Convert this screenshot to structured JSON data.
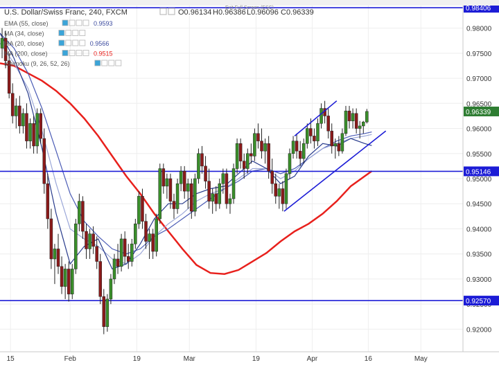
{
  "window": {
    "exit_label": "Exit Full Screen (ESC)"
  },
  "legend": {
    "symbol_title": "U.S. Dollar/Swiss Franc, 240, FXCM",
    "ohlc": {
      "open": "O0.96134",
      "high": "H0.96386",
      "low": "L0.96096",
      "close": "C0.96339"
    },
    "indicators": [
      {
        "label": "EMA (55, close)",
        "value": "0.9593",
        "color": "#3b4a9e"
      },
      {
        "label": "MA (34, close)",
        "value": "",
        "color": "#9aa6d8"
      },
      {
        "label": "MA (20, close)",
        "value": "0.9566",
        "color": "#3b4a9e"
      },
      {
        "label": "MA (200, close)",
        "value": "0.9515",
        "color": "#e8201c"
      },
      {
        "label": "Ichimoku (9, 26, 52, 26)",
        "value": "",
        "color": "#9aa6d8"
      }
    ]
  },
  "colors": {
    "up_candle": "#3a8f2a",
    "down_candle": "#8b1a1a",
    "ma200": "#e8201c",
    "ma_blue": "#4a5bb5",
    "ma_navy": "#283b8c",
    "hline": "#1c1cd6",
    "trend_line": "#1c1cd6",
    "current_price_bg": "#2e7d32",
    "grid": "#eeeeee",
    "axis_text": "#333333"
  },
  "chart_data": {
    "type": "line",
    "title": "U.S. Dollar/Swiss Franc, 240, FXCM",
    "ylim": [
      0.9155,
      0.9845
    ],
    "y_ticks": [
      0.92,
      0.925,
      0.93,
      0.935,
      0.94,
      0.945,
      0.95,
      0.955,
      0.96,
      0.965,
      0.97,
      0.975,
      0.98
    ],
    "y_tick_labels": [
      "0.92000",
      "0.92500",
      "0.93000",
      "0.93500",
      "0.94000",
      "0.94500",
      "0.95000",
      "0.95500",
      "0.96000",
      "0.96500",
      "0.97000",
      "0.97500",
      "0.98000"
    ],
    "x_tick_labels": [
      "15",
      "Feb",
      "19",
      "Mar",
      "19",
      "Apr",
      "16",
      "May"
    ],
    "x_ticks": [
      1.5,
      10,
      19.5,
      27,
      36.5,
      44.5,
      52.5,
      60
    ],
    "xlim": [
      0,
      66
    ],
    "grid": true,
    "legend_position": "top-left",
    "horizontal_levels": [
      {
        "value": 0.98406,
        "label": "0.98406"
      },
      {
        "value": 0.95146,
        "label": "0.95146"
      },
      {
        "value": 0.9257,
        "label": "0.92570"
      }
    ],
    "current_price": {
      "value": 0.96339,
      "label": "0.96339"
    },
    "trend_lines": [
      {
        "from": [
          42,
          0.9585
        ],
        "to": [
          48,
          0.9655
        ]
      },
      {
        "from": [
          40.5,
          0.9435
        ],
        "to": [
          55,
          0.9595
        ]
      }
    ],
    "candles": [
      {
        "x": 0.3,
        "o": 0.976,
        "h": 0.98,
        "l": 0.974,
        "c": 0.978
      },
      {
        "x": 0.8,
        "o": 0.978,
        "h": 0.9795,
        "l": 0.972,
        "c": 0.9735
      },
      {
        "x": 1.3,
        "o": 0.9735,
        "h": 0.975,
        "l": 0.966,
        "c": 0.967
      },
      {
        "x": 1.8,
        "o": 0.967,
        "h": 0.969,
        "l": 0.961,
        "c": 0.9625
      },
      {
        "x": 2.3,
        "o": 0.9625,
        "h": 0.966,
        "l": 0.96,
        "c": 0.9645
      },
      {
        "x": 2.8,
        "o": 0.9645,
        "h": 0.9665,
        "l": 0.959,
        "c": 0.9605
      },
      {
        "x": 3.3,
        "o": 0.9605,
        "h": 0.964,
        "l": 0.959,
        "c": 0.963
      },
      {
        "x": 3.8,
        "o": 0.963,
        "h": 0.965,
        "l": 0.956,
        "c": 0.9575
      },
      {
        "x": 4.3,
        "o": 0.9575,
        "h": 0.962,
        "l": 0.956,
        "c": 0.961
      },
      {
        "x": 4.8,
        "o": 0.961,
        "h": 0.9625,
        "l": 0.955,
        "c": 0.9565
      },
      {
        "x": 5.3,
        "o": 0.9565,
        "h": 0.964,
        "l": 0.955,
        "c": 0.963
      },
      {
        "x": 5.8,
        "o": 0.963,
        "h": 0.964,
        "l": 0.957,
        "c": 0.958
      },
      {
        "x": 6.3,
        "o": 0.958,
        "h": 0.96,
        "l": 0.947,
        "c": 0.949
      },
      {
        "x": 6.8,
        "o": 0.949,
        "h": 0.951,
        "l": 0.94,
        "c": 0.942
      },
      {
        "x": 7.3,
        "o": 0.942,
        "h": 0.944,
        "l": 0.932,
        "c": 0.934
      },
      {
        "x": 7.8,
        "o": 0.934,
        "h": 0.937,
        "l": 0.929,
        "c": 0.936
      },
      {
        "x": 8.3,
        "o": 0.936,
        "h": 0.939,
        "l": 0.931,
        "c": 0.9325
      },
      {
        "x": 8.8,
        "o": 0.9325,
        "h": 0.9345,
        "l": 0.927,
        "c": 0.9285
      },
      {
        "x": 9.3,
        "o": 0.9285,
        "h": 0.933,
        "l": 0.926,
        "c": 0.932
      },
      {
        "x": 9.8,
        "o": 0.932,
        "h": 0.9335,
        "l": 0.9255,
        "c": 0.927
      },
      {
        "x": 10.3,
        "o": 0.927,
        "h": 0.933,
        "l": 0.926,
        "c": 0.932
      },
      {
        "x": 10.8,
        "o": 0.932,
        "h": 0.942,
        "l": 0.931,
        "c": 0.941
      },
      {
        "x": 11.3,
        "o": 0.941,
        "h": 0.947,
        "l": 0.9395,
        "c": 0.9455
      },
      {
        "x": 11.8,
        "o": 0.9455,
        "h": 0.9465,
        "l": 0.938,
        "c": 0.9395
      },
      {
        "x": 12.3,
        "o": 0.9395,
        "h": 0.941,
        "l": 0.934,
        "c": 0.936
      },
      {
        "x": 12.8,
        "o": 0.936,
        "h": 0.94,
        "l": 0.934,
        "c": 0.939
      },
      {
        "x": 13.3,
        "o": 0.939,
        "h": 0.9405,
        "l": 0.935,
        "c": 0.9365
      },
      {
        "x": 13.8,
        "o": 0.9365,
        "h": 0.9385,
        "l": 0.932,
        "c": 0.9335
      },
      {
        "x": 14.3,
        "o": 0.9335,
        "h": 0.935,
        "l": 0.925,
        "c": 0.9265
      },
      {
        "x": 14.8,
        "o": 0.9265,
        "h": 0.928,
        "l": 0.919,
        "c": 0.9205
      },
      {
        "x": 15.3,
        "o": 0.9205,
        "h": 0.927,
        "l": 0.9195,
        "c": 0.926
      },
      {
        "x": 15.8,
        "o": 0.926,
        "h": 0.931,
        "l": 0.925,
        "c": 0.93
      },
      {
        "x": 16.3,
        "o": 0.93,
        "h": 0.935,
        "l": 0.929,
        "c": 0.934
      },
      {
        "x": 16.8,
        "o": 0.934,
        "h": 0.937,
        "l": 0.931,
        "c": 0.9325
      },
      {
        "x": 17.3,
        "o": 0.9325,
        "h": 0.939,
        "l": 0.9315,
        "c": 0.938
      },
      {
        "x": 17.8,
        "o": 0.938,
        "h": 0.9395,
        "l": 0.933,
        "c": 0.9345
      },
      {
        "x": 18.3,
        "o": 0.9345,
        "h": 0.937,
        "l": 0.932,
        "c": 0.9335
      },
      {
        "x": 18.8,
        "o": 0.9335,
        "h": 0.938,
        "l": 0.9325,
        "c": 0.937
      },
      {
        "x": 19.3,
        "o": 0.937,
        "h": 0.942,
        "l": 0.936,
        "c": 0.941
      },
      {
        "x": 19.8,
        "o": 0.941,
        "h": 0.9475,
        "l": 0.94,
        "c": 0.9465
      },
      {
        "x": 20.3,
        "o": 0.9465,
        "h": 0.948,
        "l": 0.94,
        "c": 0.9415
      },
      {
        "x": 20.8,
        "o": 0.9415,
        "h": 0.943,
        "l": 0.936,
        "c": 0.9375
      },
      {
        "x": 21.3,
        "o": 0.9375,
        "h": 0.94,
        "l": 0.934,
        "c": 0.939
      },
      {
        "x": 21.8,
        "o": 0.939,
        "h": 0.94,
        "l": 0.934,
        "c": 0.9355
      },
      {
        "x": 22.3,
        "o": 0.9355,
        "h": 0.943,
        "l": 0.9345,
        "c": 0.942
      },
      {
        "x": 22.8,
        "o": 0.942,
        "h": 0.953,
        "l": 0.941,
        "c": 0.952
      },
      {
        "x": 23.3,
        "o": 0.952,
        "h": 0.953,
        "l": 0.947,
        "c": 0.9485
      },
      {
        "x": 23.8,
        "o": 0.9485,
        "h": 0.951,
        "l": 0.946,
        "c": 0.95
      },
      {
        "x": 24.3,
        "o": 0.95,
        "h": 0.951,
        "l": 0.944,
        "c": 0.9455
      },
      {
        "x": 24.8,
        "o": 0.9455,
        "h": 0.947,
        "l": 0.942,
        "c": 0.944
      },
      {
        "x": 25.3,
        "o": 0.944,
        "h": 0.95,
        "l": 0.943,
        "c": 0.949
      },
      {
        "x": 25.8,
        "o": 0.949,
        "h": 0.9525,
        "l": 0.9475,
        "c": 0.9515
      },
      {
        "x": 26.3,
        "o": 0.9515,
        "h": 0.9525,
        "l": 0.946,
        "c": 0.9475
      },
      {
        "x": 26.8,
        "o": 0.9475,
        "h": 0.95,
        "l": 0.944,
        "c": 0.949
      },
      {
        "x": 27.3,
        "o": 0.949,
        "h": 0.95,
        "l": 0.942,
        "c": 0.9435
      },
      {
        "x": 27.8,
        "o": 0.9435,
        "h": 0.951,
        "l": 0.9425,
        "c": 0.95
      },
      {
        "x": 28.3,
        "o": 0.95,
        "h": 0.956,
        "l": 0.949,
        "c": 0.955
      },
      {
        "x": 28.8,
        "o": 0.955,
        "h": 0.9565,
        "l": 0.951,
        "c": 0.9525
      },
      {
        "x": 29.3,
        "o": 0.9525,
        "h": 0.9545,
        "l": 0.948,
        "c": 0.9495
      },
      {
        "x": 29.8,
        "o": 0.9495,
        "h": 0.952,
        "l": 0.944,
        "c": 0.9455
      },
      {
        "x": 30.3,
        "o": 0.9455,
        "h": 0.948,
        "l": 0.943,
        "c": 0.947
      },
      {
        "x": 30.8,
        "o": 0.947,
        "h": 0.9485,
        "l": 0.9435,
        "c": 0.945
      },
      {
        "x": 31.3,
        "o": 0.945,
        "h": 0.95,
        "l": 0.944,
        "c": 0.949
      },
      {
        "x": 31.8,
        "o": 0.949,
        "h": 0.952,
        "l": 0.947,
        "c": 0.951
      },
      {
        "x": 32.3,
        "o": 0.951,
        "h": 0.952,
        "l": 0.944,
        "c": 0.945
      },
      {
        "x": 32.8,
        "o": 0.945,
        "h": 0.947,
        "l": 0.943,
        "c": 0.946
      },
      {
        "x": 33.3,
        "o": 0.946,
        "h": 0.953,
        "l": 0.945,
        "c": 0.952
      },
      {
        "x": 33.8,
        "o": 0.952,
        "h": 0.958,
        "l": 0.951,
        "c": 0.957
      },
      {
        "x": 34.3,
        "o": 0.957,
        "h": 0.958,
        "l": 0.952,
        "c": 0.9535
      },
      {
        "x": 34.8,
        "o": 0.9535,
        "h": 0.955,
        "l": 0.95,
        "c": 0.952
      },
      {
        "x": 35.3,
        "o": 0.952,
        "h": 0.956,
        "l": 0.951,
        "c": 0.955
      },
      {
        "x": 35.8,
        "o": 0.955,
        "h": 0.957,
        "l": 0.953,
        "c": 0.9545
      },
      {
        "x": 36.3,
        "o": 0.9545,
        "h": 0.96,
        "l": 0.9535,
        "c": 0.959
      },
      {
        "x": 36.8,
        "o": 0.959,
        "h": 0.961,
        "l": 0.956,
        "c": 0.9575
      },
      {
        "x": 37.3,
        "o": 0.9575,
        "h": 0.96,
        "l": 0.954,
        "c": 0.9555
      },
      {
        "x": 37.8,
        "o": 0.9555,
        "h": 0.958,
        "l": 0.953,
        "c": 0.957
      },
      {
        "x": 38.3,
        "o": 0.957,
        "h": 0.9585,
        "l": 0.95,
        "c": 0.9515
      },
      {
        "x": 38.8,
        "o": 0.9515,
        "h": 0.954,
        "l": 0.947,
        "c": 0.949
      },
      {
        "x": 39.3,
        "o": 0.949,
        "h": 0.951,
        "l": 0.945,
        "c": 0.9465
      },
      {
        "x": 39.8,
        "o": 0.9465,
        "h": 0.949,
        "l": 0.944,
        "c": 0.948
      },
      {
        "x": 40.3,
        "o": 0.948,
        "h": 0.9495,
        "l": 0.9435,
        "c": 0.945
      },
      {
        "x": 40.8,
        "o": 0.945,
        "h": 0.952,
        "l": 0.944,
        "c": 0.951
      },
      {
        "x": 41.3,
        "o": 0.951,
        "h": 0.956,
        "l": 0.95,
        "c": 0.955
      },
      {
        "x": 41.8,
        "o": 0.955,
        "h": 0.9585,
        "l": 0.954,
        "c": 0.9575
      },
      {
        "x": 42.3,
        "o": 0.9575,
        "h": 0.959,
        "l": 0.954,
        "c": 0.9555
      },
      {
        "x": 42.8,
        "o": 0.9555,
        "h": 0.9575,
        "l": 0.9525,
        "c": 0.954
      },
      {
        "x": 43.3,
        "o": 0.954,
        "h": 0.958,
        "l": 0.953,
        "c": 0.957
      },
      {
        "x": 43.8,
        "o": 0.957,
        "h": 0.961,
        "l": 0.956,
        "c": 0.96
      },
      {
        "x": 44.3,
        "o": 0.96,
        "h": 0.962,
        "l": 0.957,
        "c": 0.9585
      },
      {
        "x": 44.8,
        "o": 0.9585,
        "h": 0.96,
        "l": 0.956,
        "c": 0.9575
      },
      {
        "x": 45.3,
        "o": 0.9575,
        "h": 0.962,
        "l": 0.9565,
        "c": 0.961
      },
      {
        "x": 45.8,
        "o": 0.961,
        "h": 0.965,
        "l": 0.96,
        "c": 0.964
      },
      {
        "x": 46.3,
        "o": 0.964,
        "h": 0.9655,
        "l": 0.961,
        "c": 0.9625
      },
      {
        "x": 46.8,
        "o": 0.9625,
        "h": 0.964,
        "l": 0.958,
        "c": 0.9595
      },
      {
        "x": 47.3,
        "o": 0.9595,
        "h": 0.961,
        "l": 0.955,
        "c": 0.9565
      },
      {
        "x": 47.8,
        "o": 0.9565,
        "h": 0.958,
        "l": 0.954,
        "c": 0.957
      },
      {
        "x": 48.3,
        "o": 0.957,
        "h": 0.9585,
        "l": 0.9545,
        "c": 0.9555
      },
      {
        "x": 48.8,
        "o": 0.9555,
        "h": 0.96,
        "l": 0.955,
        "c": 0.959
      },
      {
        "x": 49.3,
        "o": 0.959,
        "h": 0.9645,
        "l": 0.9585,
        "c": 0.9635
      },
      {
        "x": 49.8,
        "o": 0.9635,
        "h": 0.9645,
        "l": 0.96,
        "c": 0.9615
      },
      {
        "x": 50.3,
        "o": 0.9615,
        "h": 0.964,
        "l": 0.96,
        "c": 0.963
      },
      {
        "x": 50.8,
        "o": 0.963,
        "h": 0.964,
        "l": 0.959,
        "c": 0.96
      },
      {
        "x": 51.3,
        "o": 0.96,
        "h": 0.9615,
        "l": 0.958,
        "c": 0.9605
      },
      {
        "x": 51.8,
        "o": 0.9605,
        "h": 0.9615,
        "l": 0.959,
        "c": 0.9613
      },
      {
        "x": 52.3,
        "o": 0.9613,
        "h": 0.9639,
        "l": 0.961,
        "c": 0.9634
      }
    ],
    "series": [
      {
        "name": "MA (200, close)",
        "color": "#e8201c",
        "x": [
          0,
          2,
          4,
          6,
          8,
          10,
          12,
          14,
          16,
          18,
          20,
          22,
          24,
          26,
          28,
          30,
          32,
          34,
          36,
          38,
          40,
          42,
          44,
          46,
          48,
          50,
          52,
          53
        ],
        "y": [
          0.973,
          0.9725,
          0.971,
          0.9695,
          0.9675,
          0.965,
          0.962,
          0.9585,
          0.9545,
          0.9505,
          0.947,
          0.943,
          0.9395,
          0.936,
          0.9328,
          0.9312,
          0.931,
          0.9318,
          0.9335,
          0.9352,
          0.9375,
          0.9395,
          0.941,
          0.943,
          0.9455,
          0.9485,
          0.9505,
          0.9515
        ]
      },
      {
        "name": "EMA (55, close)",
        "color": "#4a5bb5",
        "x": [
          0,
          2,
          4,
          6,
          8,
          10,
          12,
          14,
          16,
          18,
          20,
          22,
          24,
          26,
          28,
          30,
          32,
          34,
          36,
          38,
          40,
          42,
          44,
          46,
          48,
          50,
          52,
          53
        ],
        "y": [
          0.979,
          0.976,
          0.971,
          0.964,
          0.9555,
          0.947,
          0.9415,
          0.9385,
          0.936,
          0.935,
          0.936,
          0.9385,
          0.94,
          0.942,
          0.944,
          0.946,
          0.948,
          0.9495,
          0.9515,
          0.952,
          0.951,
          0.952,
          0.954,
          0.956,
          0.9575,
          0.9585,
          0.959,
          0.9593
        ]
      },
      {
        "name": "MA (34, close)",
        "color": "#9aa6d8",
        "x": [
          0,
          2,
          4,
          6,
          8,
          10,
          12,
          14,
          16,
          18,
          20,
          22,
          24,
          26,
          28,
          30,
          32,
          34,
          36,
          38,
          40,
          42,
          44,
          46,
          48,
          50,
          52,
          53
        ],
        "y": [
          0.977,
          0.973,
          0.968,
          0.9595,
          0.949,
          0.94,
          0.938,
          0.9365,
          0.934,
          0.933,
          0.935,
          0.9385,
          0.941,
          0.943,
          0.9455,
          0.947,
          0.948,
          0.95,
          0.952,
          0.952,
          0.95,
          0.9515,
          0.954,
          0.956,
          0.957,
          0.958,
          0.9585,
          0.9588
        ]
      },
      {
        "name": "MA (20, close)",
        "color": "#283b8c",
        "x": [
          0,
          2,
          4,
          6,
          8,
          10,
          12,
          14,
          16,
          18,
          20,
          22,
          24,
          26,
          28,
          30,
          32,
          34,
          36,
          38,
          40,
          42,
          44,
          46,
          48,
          50,
          52,
          53
        ],
        "y": [
          0.979,
          0.974,
          0.967,
          0.956,
          0.943,
          0.933,
          0.9365,
          0.938,
          0.932,
          0.933,
          0.937,
          0.942,
          0.945,
          0.945,
          0.947,
          0.948,
          0.9485,
          0.951,
          0.9535,
          0.952,
          0.949,
          0.9505,
          0.9545,
          0.957,
          0.9565,
          0.958,
          0.957,
          0.9566
        ]
      }
    ]
  }
}
